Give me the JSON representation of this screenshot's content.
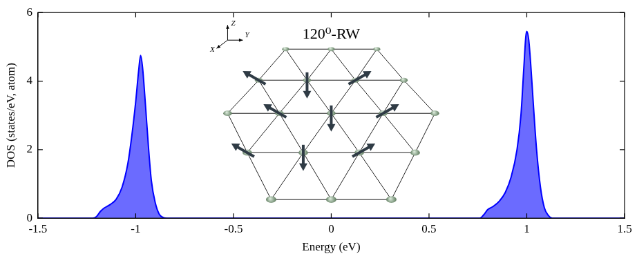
{
  "chart_data": {
    "type": "line",
    "x_label": "Energy (eV)",
    "y_label": "DOS (states/eV, atom)",
    "x": [
      -1.5,
      -1.25,
      -1.22,
      -1.2,
      -1.18,
      -1.16,
      -1.13,
      -1.1,
      -1.07,
      -1.04,
      -1.02,
      -1.0,
      -0.985,
      -0.975,
      -0.965,
      -0.95,
      -0.935,
      -0.92,
      -0.9,
      -0.88,
      -0.86,
      -0.84,
      0.76,
      0.78,
      0.8,
      0.83,
      0.86,
      0.89,
      0.92,
      0.95,
      0.97,
      0.985,
      0.995,
      1.0,
      1.01,
      1.02,
      1.035,
      1.05,
      1.07,
      1.09,
      1.11,
      1.13,
      1.5
    ],
    "values": [
      0,
      0,
      0,
      0.05,
      0.2,
      0.3,
      0.4,
      0.55,
      0.9,
      1.6,
      2.4,
      3.4,
      4.3,
      4.75,
      4.4,
      3.3,
      2.1,
      1.1,
      0.45,
      0.12,
      0.02,
      0,
      0,
      0.1,
      0.25,
      0.35,
      0.5,
      0.75,
      1.2,
      2.0,
      3.0,
      4.4,
      5.3,
      5.45,
      5.2,
      4.5,
      3.2,
      2.0,
      0.9,
      0.3,
      0.08,
      0,
      0
    ],
    "color": "#0000ff",
    "xlim": [
      -1.5,
      1.5
    ],
    "xticks": [
      -1.5,
      -1,
      -0.5,
      0,
      0.5,
      1,
      1.5
    ],
    "ylim": [
      0,
      6
    ],
    "yticks": [
      0,
      2,
      4,
      6
    ],
    "grid": false,
    "inset": {
      "title": "120⁰-RW",
      "axes": [
        "X",
        "Y",
        "Z"
      ]
    }
  }
}
